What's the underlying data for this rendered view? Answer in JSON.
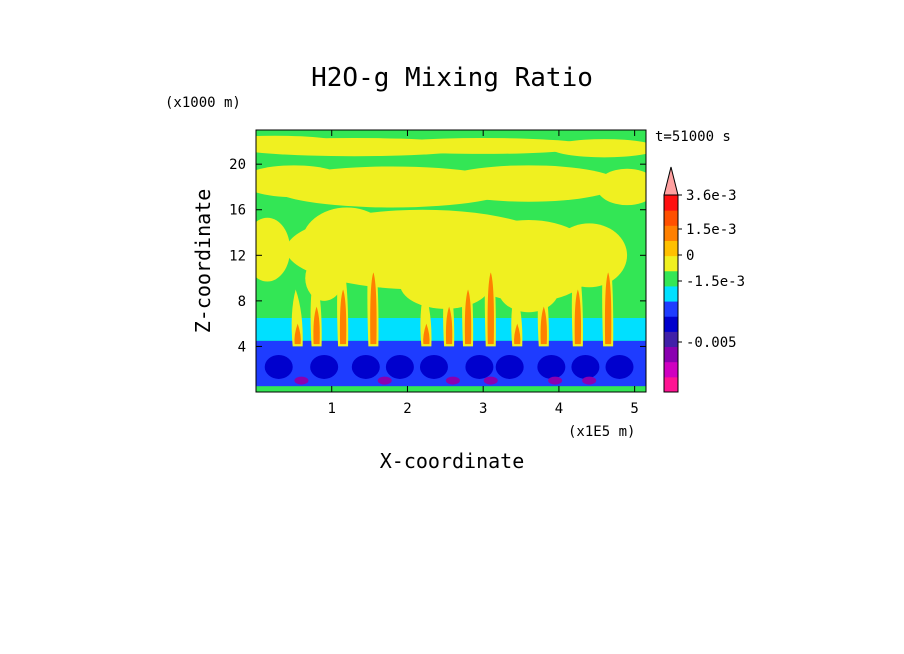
{
  "chart_data": {
    "type": "heatmap",
    "title": "H2O-g Mixing Ratio",
    "time_label": "t=51000 s",
    "xlabel": "X-coordinate",
    "ylabel": "Z-coordinate",
    "x_unit": "(x1E5 m)",
    "y_unit": "(x1000 m)",
    "xlim": [
      0,
      5.15
    ],
    "ylim": [
      0,
      23
    ],
    "x_ticks": [
      1,
      2,
      3,
      4,
      5
    ],
    "y_ticks": [
      4,
      8,
      12,
      16,
      20
    ],
    "colorbar": {
      "colors": [
        "#ff1493",
        "#d000c0",
        "#8a00b0",
        "#4020a8",
        "#0000cd",
        "#1e3cff",
        "#00e0ff",
        "#33e655",
        "#f0f020",
        "#ffc000",
        "#ff8000",
        "#ff5000",
        "#ff1010",
        "#ffa0a0"
      ],
      "tick_labels": [
        "3.6e-3",
        "1.5e-3",
        "0",
        "-1.5e-3",
        "-0.005"
      ]
    },
    "fields": {
      "layers": [
        {
          "z_from": 0.5,
          "z_to": 4.5,
          "color": "#1e3cff"
        },
        {
          "z_from": 4.5,
          "z_to": 6.5,
          "color": "#00e0ff"
        },
        {
          "z_from": 6.5,
          "z_to": 23,
          "color": "#33e655"
        }
      ],
      "plumes_x": [
        0.55,
        0.8,
        1.15,
        1.55,
        2.25,
        2.55,
        2.8,
        3.1,
        3.45,
        3.8,
        4.25,
        4.65
      ],
      "upper_patch_color": "#f0f020",
      "plume_core_color": "#ff8000",
      "deep_color": "#0000cd",
      "deepest_color": "#8a00b0"
    }
  }
}
